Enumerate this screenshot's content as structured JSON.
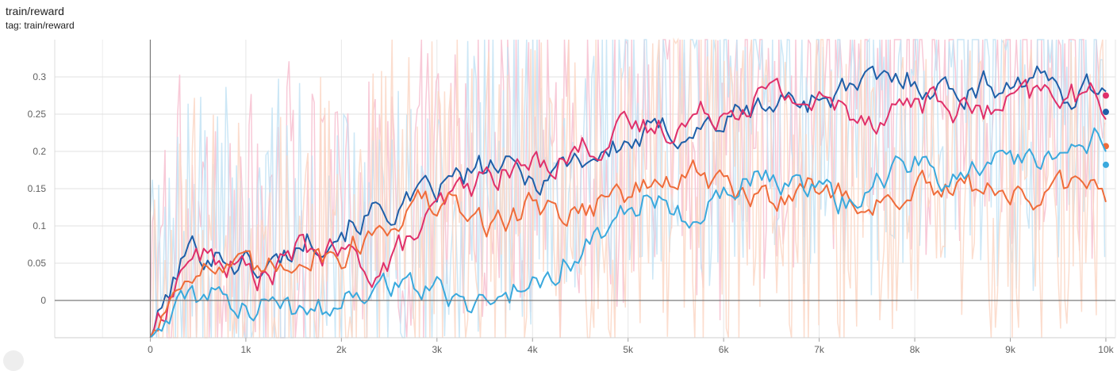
{
  "card": {
    "title": "train/reward",
    "tag": "tag: train/reward"
  },
  "chart_data": {
    "type": "line",
    "title": "train/reward",
    "xlabel": "",
    "ylabel": "",
    "xlim": [
      -1000,
      10100
    ],
    "ylim": [
      -0.05,
      0.35
    ],
    "x_ticks": [
      0,
      1000,
      2000,
      3000,
      4000,
      5000,
      6000,
      7000,
      8000,
      9000,
      10000
    ],
    "x_tick_labels": [
      "0",
      "1k",
      "2k",
      "3k",
      "4k",
      "5k",
      "6k",
      "7k",
      "8k",
      "9k",
      "10k"
    ],
    "y_ticks": [
      0,
      0.05,
      0.1,
      0.15,
      0.2,
      0.25,
      0.3
    ],
    "y_tick_labels": [
      "0",
      "0.05",
      "0.1",
      "0.15",
      "0.2",
      "0.25",
      "0.3"
    ],
    "grid": true,
    "legend": "none",
    "x_step": 400,
    "series": [
      {
        "color": "#1f5fa8",
        "end_value": 0.253,
        "values": [
          -0.05,
          0.07,
          0.06,
          0.04,
          0.08,
          0.1,
          0.12,
          0.13,
          0.16,
          0.18,
          0.16,
          0.19,
          0.2,
          0.22,
          0.23,
          0.24,
          0.26,
          0.27,
          0.28,
          0.29,
          0.3,
          0.28,
          0.29,
          0.3,
          0.28,
          0.29,
          0.27,
          0.28,
          0.29,
          0.3,
          0.29,
          0.3,
          0.31,
          0.3,
          0.28,
          0.3,
          0.27,
          0.26,
          0.28,
          0.27,
          0.26,
          0.253
        ]
      },
      {
        "color": "#e0306a",
        "end_value": 0.275,
        "values": [
          -0.05,
          0.06,
          0.05,
          0.03,
          0.07,
          0.06,
          0.04,
          0.09,
          0.14,
          0.17,
          0.18,
          0.2,
          0.22,
          0.23,
          0.24,
          0.26,
          0.28,
          0.27,
          0.26,
          0.25,
          0.27,
          0.26,
          0.25,
          0.27,
          0.28,
          0.26,
          0.27,
          0.28,
          0.29,
          0.3,
          0.28,
          0.29,
          0.3,
          0.27,
          0.28,
          0.29,
          0.28,
          0.29,
          0.3,
          0.29,
          0.3,
          0.275
        ]
      },
      {
        "color": "#ef6c3a",
        "end_value": 0.207,
        "values": [
          -0.05,
          0.05,
          0.04,
          0.03,
          0.07,
          0.06,
          0.1,
          0.13,
          0.12,
          0.1,
          0.13,
          0.12,
          0.14,
          0.15,
          0.17,
          0.15,
          0.13,
          0.16,
          0.14,
          0.13,
          0.15,
          0.14,
          0.16,
          0.13,
          0.15,
          0.14,
          0.13,
          0.12,
          0.16,
          0.14,
          0.13,
          0.15,
          0.14,
          0.16,
          0.13,
          0.14,
          0.15,
          0.16,
          0.18,
          0.17,
          0.16,
          0.207
        ]
      },
      {
        "color": "#3aa9dd",
        "end_value": 0.182,
        "values": [
          -0.05,
          0.0,
          0.0,
          -0.01,
          -0.02,
          0.0,
          0.03,
          0.02,
          0.0,
          0.0,
          0.03,
          0.06,
          0.1,
          0.14,
          0.12,
          0.15,
          0.16,
          0.15,
          0.13,
          0.17,
          0.18,
          0.16,
          0.2,
          0.18,
          0.19,
          0.22,
          0.2,
          0.19,
          0.22,
          0.21,
          0.23,
          0.21,
          0.19,
          0.22,
          0.2,
          0.21,
          0.19,
          0.2,
          0.22,
          0.2,
          0.12,
          0.182
        ]
      }
    ],
    "noise_series": [
      {
        "color": "#f7bfd0",
        "seed": 3
      },
      {
        "color": "#c3e3f4",
        "seed": 7
      },
      {
        "color": "#fbd7c6",
        "seed": 11
      }
    ]
  }
}
